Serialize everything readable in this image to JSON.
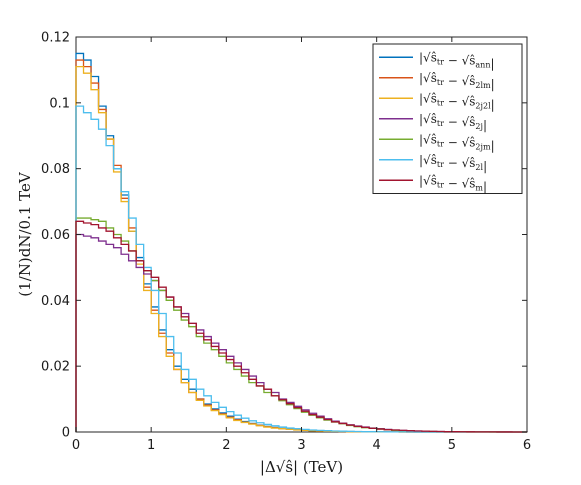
{
  "chart_data": {
    "type": "line",
    "style": "step histogram",
    "xlabel": "|Δ√ŝ| (TeV)",
    "ylabel": "(1/N)dN/0.1 TeV",
    "xlim": [
      0,
      6
    ],
    "ylim": [
      0,
      0.12
    ],
    "xticks": [
      "0",
      "1",
      "2",
      "3",
      "4",
      "5",
      "6"
    ],
    "yticks": [
      "0",
      "0.02",
      "0.04",
      "0.06",
      "0.08",
      "0.1",
      "0.12"
    ],
    "grid": false,
    "legend_position": "top-right",
    "bin_width": 0.1,
    "x": [
      0.0,
      0.1,
      0.2,
      0.3,
      0.4,
      0.5,
      0.6,
      0.7,
      0.8,
      0.9,
      1.0,
      1.1,
      1.2,
      1.3,
      1.4,
      1.5,
      1.6,
      1.7,
      1.8,
      1.9,
      2.0,
      2.1,
      2.2,
      2.3,
      2.4,
      2.5,
      2.6,
      2.7,
      2.8,
      2.9,
      3.0,
      3.1,
      3.2,
      3.3,
      3.4,
      3.5,
      3.6,
      3.7,
      3.8,
      3.9,
      4.0,
      4.1,
      4.2,
      4.3,
      4.4,
      4.5,
      4.6,
      4.7,
      4.8,
      4.9,
      5.0,
      5.1,
      5.2,
      5.3,
      5.4,
      5.5,
      5.6,
      5.7,
      5.8,
      5.9
    ],
    "series": [
      {
        "name": "|√ŝtr − √ŝann|",
        "main": "√ŝ",
        "sub1": "tr",
        "sub2": "ann",
        "color": "#0072BD",
        "values": [
          0.115,
          0.113,
          0.108,
          0.099,
          0.09,
          0.08,
          0.072,
          0.061,
          0.053,
          0.045,
          0.038,
          0.031,
          0.025,
          0.02,
          0.016,
          0.013,
          0.01,
          0.0085,
          0.007,
          0.0058,
          0.0048,
          0.0039,
          0.0032,
          0.0026,
          0.0021,
          0.0017,
          0.0014,
          0.0011,
          0.0009,
          0.0007,
          0.0006,
          0.0005,
          0.0004,
          0.0003,
          0.00025,
          0.0002,
          0.00015,
          0.0001,
          0.0001,
          8e-05,
          6e-05,
          5e-05,
          4e-05,
          3e-05,
          2e-05,
          2e-05,
          1e-05,
          1e-05,
          1e-05,
          1e-05,
          0,
          0,
          0,
          0,
          0,
          0,
          0,
          0,
          0,
          0
        ]
      },
      {
        "name": "|√ŝtr − √ŝ2lm|",
        "main": "√ŝ",
        "sub1": "tr",
        "sub2": "2lm",
        "color": "#D95319",
        "values": [
          0.113,
          0.111,
          0.106,
          0.098,
          0.089,
          0.081,
          0.071,
          0.062,
          0.052,
          0.044,
          0.037,
          0.03,
          0.024,
          0.019,
          0.015,
          0.012,
          0.01,
          0.0082,
          0.0067,
          0.0055,
          0.0045,
          0.0037,
          0.003,
          0.0025,
          0.002,
          0.0016,
          0.0013,
          0.001,
          0.0008,
          0.0007,
          0.0005,
          0.0004,
          0.0003,
          0.00025,
          0.0002,
          0.00015,
          0.0001,
          0.0001,
          8e-05,
          6e-05,
          5e-05,
          4e-05,
          3e-05,
          2e-05,
          2e-05,
          1e-05,
          1e-05,
          1e-05,
          0,
          0,
          0,
          0,
          0,
          0,
          0,
          0,
          0,
          0,
          0,
          0
        ]
      },
      {
        "name": "|√ŝtr − √ŝ2j2l|",
        "main": "√ŝ",
        "sub1": "tr",
        "sub2": "2j2l",
        "color": "#EDB120",
        "values": [
          0.111,
          0.109,
          0.104,
          0.097,
          0.089,
          0.079,
          0.07,
          0.061,
          0.051,
          0.043,
          0.036,
          0.029,
          0.023,
          0.019,
          0.015,
          0.012,
          0.0096,
          0.0079,
          0.0065,
          0.0053,
          0.0043,
          0.0035,
          0.0029,
          0.0024,
          0.0019,
          0.0015,
          0.0012,
          0.001,
          0.0008,
          0.0006,
          0.0005,
          0.0004,
          0.0003,
          0.00025,
          0.0002,
          0.00015,
          0.0001,
          0.0001,
          8e-05,
          6e-05,
          5e-05,
          4e-05,
          3e-05,
          2e-05,
          2e-05,
          1e-05,
          1e-05,
          1e-05,
          0,
          0,
          0,
          0,
          0,
          0,
          0,
          0,
          0,
          0,
          0,
          0
        ]
      },
      {
        "name": "|√ŝtr − √ŝ2j|",
        "main": "√ŝ",
        "sub1": "tr",
        "sub2": "2j",
        "color": "#7E2F8E",
        "values": [
          0.06,
          0.0595,
          0.059,
          0.058,
          0.057,
          0.056,
          0.054,
          0.052,
          0.05,
          0.048,
          0.046,
          0.043,
          0.041,
          0.038,
          0.036,
          0.033,
          0.031,
          0.029,
          0.027,
          0.025,
          0.023,
          0.021,
          0.019,
          0.017,
          0.015,
          0.013,
          0.012,
          0.01,
          0.009,
          0.0078,
          0.0067,
          0.0057,
          0.0048,
          0.004,
          0.0033,
          0.0027,
          0.0022,
          0.0018,
          0.0015,
          0.0012,
          0.001,
          0.0008,
          0.0006,
          0.0005,
          0.0004,
          0.0003,
          0.00025,
          0.0002,
          0.00015,
          0.0001,
          0.0001,
          8e-05,
          6e-05,
          5e-05,
          4e-05,
          3e-05,
          2e-05,
          2e-05,
          1e-05,
          1e-05
        ]
      },
      {
        "name": "|√ŝtr − √ŝ2jm|",
        "main": "√ŝ",
        "sub1": "tr",
        "sub2": "2jm",
        "color": "#77AC30",
        "values": [
          0.065,
          0.065,
          0.0645,
          0.064,
          0.062,
          0.06,
          0.058,
          0.055,
          0.052,
          0.049,
          0.046,
          0.043,
          0.04,
          0.037,
          0.034,
          0.032,
          0.029,
          0.027,
          0.025,
          0.023,
          0.021,
          0.019,
          0.017,
          0.015,
          0.014,
          0.012,
          0.011,
          0.0095,
          0.0083,
          0.0071,
          0.006,
          0.0051,
          0.0043,
          0.0036,
          0.003,
          0.0025,
          0.002,
          0.0016,
          0.0013,
          0.0011,
          0.0009,
          0.0007,
          0.0005,
          0.0004,
          0.0003,
          0.00025,
          0.0002,
          0.00015,
          0.0001,
          0.0001,
          8e-05,
          6e-05,
          5e-05,
          4e-05,
          3e-05,
          2e-05,
          2e-05,
          1e-05,
          1e-05,
          0
        ]
      },
      {
        "name": "|√ŝtr − √ŝ2l|",
        "main": "√ŝ",
        "sub1": "tr",
        "sub2": "2l",
        "color": "#4DBEEE",
        "values": [
          0.099,
          0.097,
          0.095,
          0.092,
          0.087,
          0.08,
          0.073,
          0.065,
          0.057,
          0.05,
          0.043,
          0.036,
          0.029,
          0.024,
          0.019,
          0.016,
          0.013,
          0.011,
          0.009,
          0.0075,
          0.0062,
          0.0051,
          0.0042,
          0.0034,
          0.0028,
          0.0023,
          0.0019,
          0.0015,
          0.0012,
          0.001,
          0.0008,
          0.0006,
          0.0005,
          0.0004,
          0.0003,
          0.00025,
          0.0002,
          0.00015,
          0.0001,
          0.0001,
          8e-05,
          6e-05,
          5e-05,
          4e-05,
          3e-05,
          2e-05,
          2e-05,
          1e-05,
          1e-05,
          1e-05,
          0,
          0,
          0,
          0,
          0,
          0,
          0,
          0,
          0,
          0
        ]
      },
      {
        "name": "|√ŝtr − √ŝm|",
        "main": "√ŝ",
        "sub1": "tr",
        "sub2": "m",
        "color": "#A2142F",
        "values": [
          0.064,
          0.0635,
          0.063,
          0.062,
          0.061,
          0.059,
          0.057,
          0.055,
          0.052,
          0.049,
          0.047,
          0.044,
          0.041,
          0.038,
          0.035,
          0.033,
          0.03,
          0.028,
          0.026,
          0.024,
          0.022,
          0.02,
          0.018,
          0.016,
          0.014,
          0.013,
          0.011,
          0.0098,
          0.0086,
          0.0074,
          0.0063,
          0.0053,
          0.0045,
          0.0038,
          0.0031,
          0.0026,
          0.0021,
          0.0017,
          0.0014,
          0.0011,
          0.0009,
          0.0007,
          0.0006,
          0.0005,
          0.0004,
          0.0003,
          0.00025,
          0.0002,
          0.00015,
          0.0001,
          0.0001,
          8e-05,
          6e-05,
          5e-05,
          4e-05,
          3e-05,
          2e-05,
          2e-05,
          1e-05,
          1e-05
        ]
      }
    ]
  }
}
